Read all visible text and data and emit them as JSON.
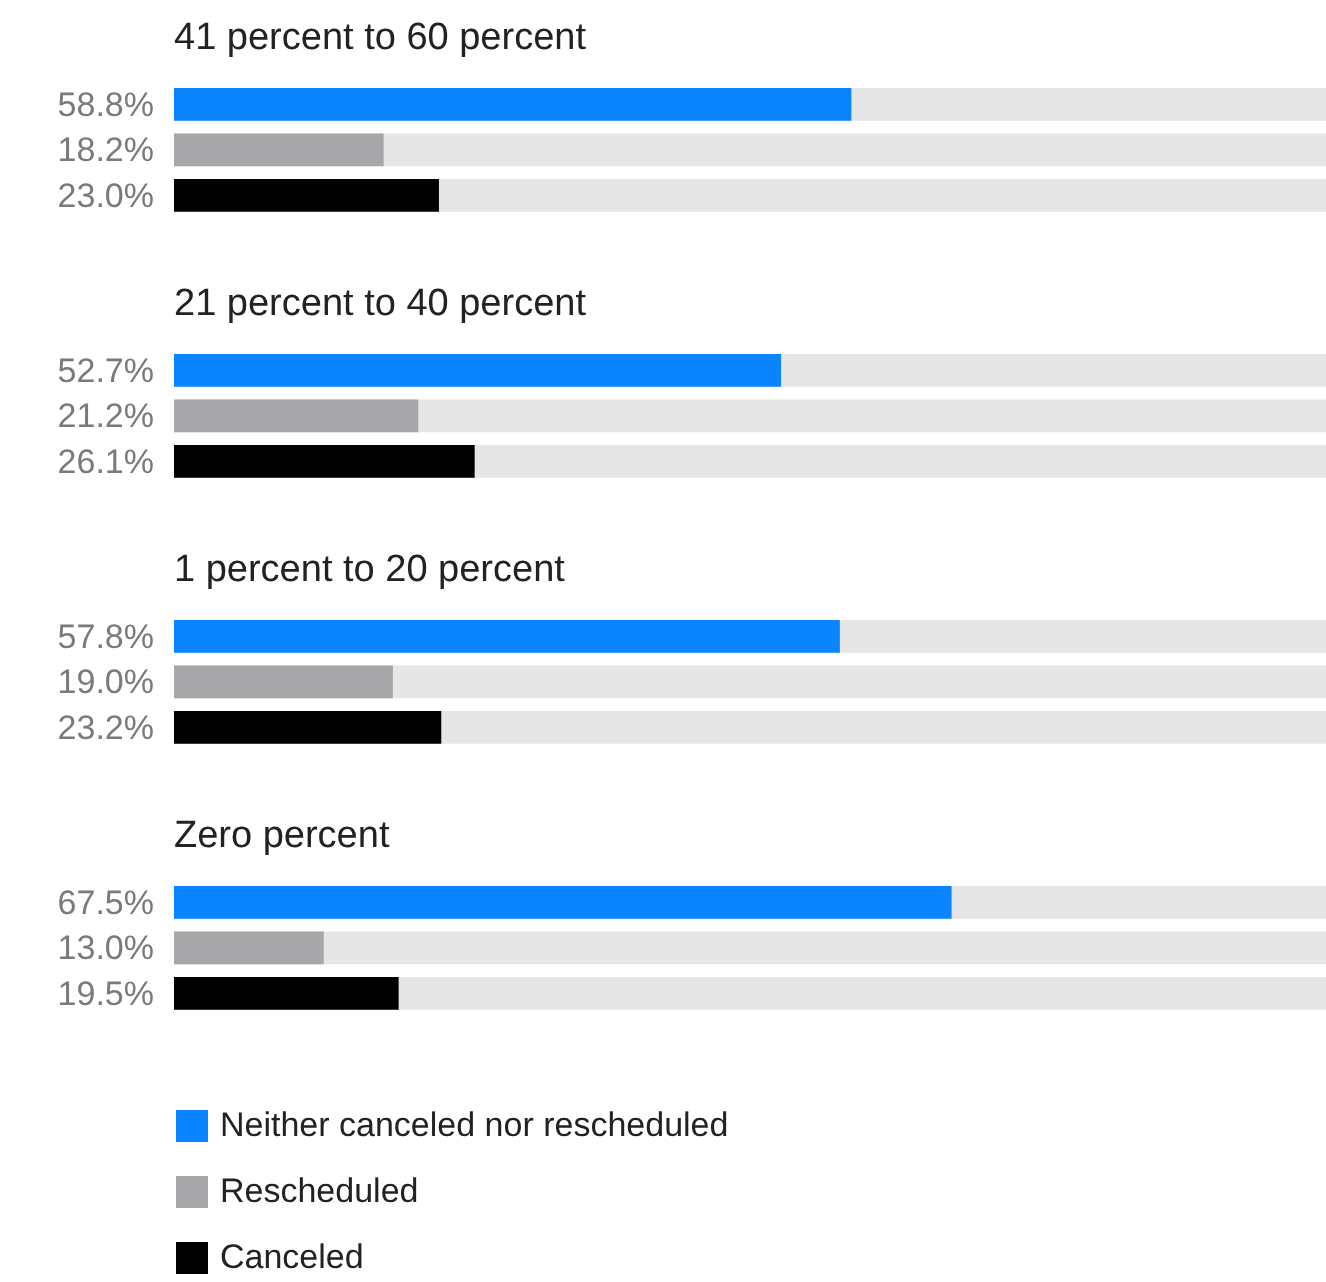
{
  "chart_data": [
    {
      "type": "bar",
      "orientation": "horizontal",
      "title": "41 percent to 60 percent",
      "categories": [
        null
      ],
      "xlim": [
        0,
        100
      ],
      "tick_labels": false,
      "legend": false,
      "series": [
        {
          "color": "#0a84ff",
          "values": [
            58.8
          ],
          "value_labels": [
            "58.8%"
          ]
        },
        {
          "color": "#a7a7aa",
          "values": [
            18.2
          ],
          "value_labels": [
            "18.2%"
          ]
        },
        {
          "color": "#000000",
          "values": [
            23.0
          ],
          "value_labels": [
            "23.0%"
          ]
        }
      ]
    },
    {
      "type": "bar",
      "orientation": "horizontal",
      "title": "21 percent to 40 percent",
      "categories": [
        null
      ],
      "xlim": [
        0,
        100
      ],
      "tick_labels": false,
      "legend": false,
      "series": [
        {
          "color": "#0a84ff",
          "values": [
            52.7
          ],
          "value_labels": [
            "52.7%"
          ]
        },
        {
          "color": "#a7a7aa",
          "values": [
            21.2
          ],
          "value_labels": [
            "21.2%"
          ]
        },
        {
          "color": "#000000",
          "values": [
            26.1
          ],
          "value_labels": [
            "26.1%"
          ]
        }
      ]
    },
    {
      "type": "bar",
      "orientation": "horizontal",
      "title": "1 percent to 20 percent",
      "categories": [
        null
      ],
      "xlim": [
        0,
        100
      ],
      "tick_labels": false,
      "legend": false,
      "series": [
        {
          "color": "#0a84ff",
          "values": [
            57.8
          ],
          "value_labels": [
            "57.8%"
          ]
        },
        {
          "color": "#a7a7aa",
          "values": [
            19.0
          ],
          "value_labels": [
            "19.0%"
          ]
        },
        {
          "color": "#000000",
          "values": [
            23.2
          ],
          "value_labels": [
            "23.2%"
          ]
        }
      ]
    },
    {
      "type": "bar",
      "orientation": "horizontal",
      "title": "Zero percent",
      "categories": [
        null
      ],
      "xlim": [
        0,
        100
      ],
      "tick_labels": false,
      "legend": "bottom",
      "series": [
        {
          "name": "Neither canceled nor rescheduled",
          "color": "#0a84ff",
          "values": [
            67.5
          ],
          "value_labels": [
            "67.5%"
          ]
        },
        {
          "name": "Rescheduled",
          "color": "#a7a7aa",
          "values": [
            13.0
          ],
          "value_labels": [
            "13.0%"
          ]
        },
        {
          "name": "Canceled",
          "color": "#000000",
          "values": [
            19.5
          ],
          "value_labels": [
            "19.5%"
          ]
        }
      ]
    }
  ]
}
